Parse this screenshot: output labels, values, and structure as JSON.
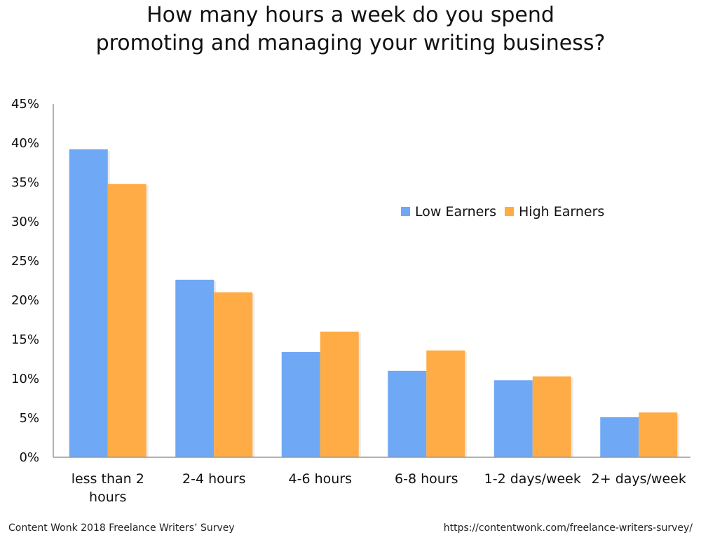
{
  "chart_data": {
    "type": "bar",
    "title_lines": [
      "How many hours a week do you spend",
      "promoting and managing your writing business?"
    ],
    "categories": [
      "less than 2 hours",
      "2-4 hours",
      "4-6 hours",
      "6-8 hours",
      "1-2 days/week",
      "2+ days/week"
    ],
    "series": [
      {
        "name": "Low Earners",
        "color": "#6FA8F5",
        "values": [
          39.2,
          22.6,
          13.4,
          11.0,
          9.8,
          5.1
        ]
      },
      {
        "name": "High Earners",
        "color": "#FFAC46",
        "values": [
          34.8,
          21.0,
          16.0,
          13.6,
          10.3,
          5.7
        ]
      }
    ],
    "y_ticks": [
      "0%",
      "5%",
      "10%",
      "15%",
      "20%",
      "25%",
      "30%",
      "35%",
      "40%",
      "45%"
    ],
    "ylim": [
      0,
      45
    ],
    "y_unit": "percent",
    "grid": false,
    "legend_position": "center-right"
  },
  "footer": {
    "source": "Content Wonk 2018 Freelance Writers’ Survey",
    "url": "https://contentwonk.com/freelance-writers-survey/"
  }
}
